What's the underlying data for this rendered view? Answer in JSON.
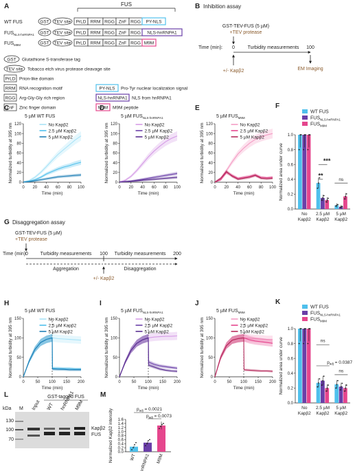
{
  "panel_letters": [
    "A",
    "B",
    "C",
    "D",
    "E",
    "F",
    "G",
    "H",
    "I",
    "J",
    "K",
    "L",
    "M"
  ],
  "A": {
    "fus_label": "FUS",
    "rows": [
      "WT FUS",
      "FUS",
      "FUS"
    ],
    "row_subs": [
      "",
      "NLS-hnRNPA1",
      "M9M"
    ],
    "blocks": [
      "GST",
      "TEV site",
      "PrLD",
      "RRM",
      "RGG",
      "ZnF",
      "RGG"
    ],
    "tails": [
      "PY-NLS",
      "NLS-hnRNPA1",
      "M9M"
    ],
    "legend": [
      {
        "k": "GST",
        "v": "Glutathione S-transferase tag"
      },
      {
        "k": "TEV site",
        "v": "Tobacco etch virus protease cleavage site"
      },
      {
        "k": "PrLD",
        "v": "Prion-like domain"
      },
      {
        "k": "RRM",
        "v": "RNA recognition motif"
      },
      {
        "k": "RGG",
        "v": "Arg-Gly-Gly rich region"
      },
      {
        "k": "ZnF",
        "v": "Zinc finger domain"
      },
      {
        "k": "PY-NLS",
        "v": "Pro-Tyr nuclear localization signal"
      },
      {
        "k": "NLS-hnRNPA1",
        "v": "NLS from hnRNPA1"
      },
      {
        "k": "M9M",
        "v": "M9M peptide"
      }
    ]
  },
  "B": {
    "title": "Inhibition assay",
    "line1": "GST-TEV-FUS (5 µM)",
    "line2": "+TEV protease",
    "time_label": "Time (min):",
    "t0": "0",
    "t_end": "100",
    "phase": "Turbidity measurements",
    "add": "+/- Kapβ2",
    "end": "EM Imaging"
  },
  "G": {
    "title": "Disaggregation assay",
    "line1": "GST-TEV-FUS (5 µM)",
    "line2": "+TEV protease",
    "time_label": "Time (min):",
    "t0": "0",
    "t_mid": "100",
    "t_end": "200",
    "phase1": "Turbidity measurements",
    "phase2": "Turbidity measurements",
    "lab1": "Aggregation",
    "lab2": "Disaggregation",
    "add": "+/- Kapβ2"
  },
  "turbidity": {
    "ylabel": "Normalized turbidity at 395 nm",
    "xlabel": "Time (min)",
    "legend": [
      "No Kapβ2",
      "2.5 µM Kapβ2",
      "5 µM Kapβ2"
    ],
    "panels": {
      "C": {
        "title": "5 µM WT FUS",
        "sub": ""
      },
      "D": {
        "title": "5 µM FUS",
        "sub": "NLS-hnRNPA1"
      },
      "E": {
        "title": "5 µM FUS",
        "sub": "M9M"
      },
      "H": {
        "title": "5 µM WT FUS",
        "sub": ""
      },
      "I": {
        "title": "5 µM FUS",
        "sub": "NLS-hnRNPA1"
      },
      "J": {
        "title": "5 µM FUS",
        "sub": "M9M"
      }
    }
  },
  "bars": {
    "ylabel": "Normalized area under curve",
    "legend": [
      "WT FUS",
      "FUS",
      "FUS"
    ],
    "legend_subs": [
      "",
      "NLS-hnRNPA1",
      "M9M"
    ],
    "groups": [
      [
        "No",
        "Kapβ2"
      ],
      [
        "2.5 µM",
        "Kapβ2"
      ],
      [
        "5 µM",
        "Kapβ2"
      ]
    ],
    "F_sig": [
      "***",
      "**",
      "ns"
    ],
    "K_sig": [
      "ns",
      "p",
      "ns"
    ],
    "K_p": "= 0.0387",
    "K_p_sub": "adj"
  },
  "L": {
    "kda": "kDa",
    "m": "M",
    "header": "GST-tagged FUS",
    "lanes": [
      "Input",
      "WT",
      "hnRNPA1",
      "M9M"
    ],
    "mw": [
      "130",
      "100",
      "70"
    ],
    "bands": [
      "Kapβ2",
      "FUS"
    ]
  },
  "M": {
    "ylabel": "Normalized Kapβ2 intensity",
    "categories": [
      "WT",
      "hnRNPA1",
      "M9M"
    ],
    "p1": "= 0.0021",
    "p2": "= 0.0073",
    "p_sub": "adj"
  },
  "colors": {
    "wt": "#4fc0ec",
    "nls": "#6a3fa8",
    "m9m": "#e5468d",
    "wt_light": "#a8e3f7",
    "wt_dark": "#1f7fb6",
    "nls_light": "#d59be6",
    "nls_dark": "#5a2f91",
    "m9m_light": "#f49cc4",
    "m9m_dark": "#b52a5c",
    "line_brown": "#8a5a2b"
  },
  "chart_data": [
    {
      "type": "line",
      "id": "C",
      "title": "5 µM WT FUS",
      "xlabel": "Time (min)",
      "ylabel": "Normalized turbidity at 395 nm",
      "xlim": [
        0,
        100
      ],
      "ylim": [
        0,
        120
      ],
      "series": [
        {
          "name": "No Kapβ2",
          "x": [
            0,
            10,
            20,
            30,
            40,
            50,
            60,
            70,
            80,
            90,
            100
          ],
          "y": [
            0,
            3,
            10,
            20,
            32,
            45,
            57,
            67,
            77,
            87,
            95
          ]
        },
        {
          "name": "2.5 µM Kapβ2",
          "x": [
            0,
            10,
            20,
            30,
            40,
            50,
            60,
            70,
            80,
            90,
            100
          ],
          "y": [
            0,
            2,
            5,
            10,
            17,
            22,
            27,
            31,
            34,
            38,
            41
          ]
        },
        {
          "name": "5 µM Kapβ2",
          "x": [
            0,
            10,
            20,
            30,
            40,
            50,
            60,
            70,
            80,
            90,
            100
          ],
          "y": [
            0,
            1,
            3,
            5,
            7,
            9,
            11,
            12,
            13,
            14,
            15
          ]
        }
      ]
    },
    {
      "type": "line",
      "id": "D",
      "title": "5 µM FUS NLS-hnRNPA1",
      "xlabel": "Time (min)",
      "ylabel": "Normalized turbidity at 395 nm",
      "xlim": [
        0,
        100
      ],
      "ylim": [
        0,
        120
      ],
      "series": [
        {
          "name": "No Kapβ2",
          "x": [
            0,
            10,
            20,
            30,
            40,
            50,
            60,
            70,
            80,
            90,
            100
          ],
          "y": [
            0,
            4,
            12,
            24,
            38,
            52,
            64,
            74,
            83,
            90,
            95
          ]
        },
        {
          "name": "2.5 µM Kapβ2",
          "x": [
            0,
            10,
            20,
            30,
            40,
            50,
            60,
            70,
            80,
            90,
            100
          ],
          "y": [
            0,
            1,
            2,
            4,
            6,
            8,
            10,
            12,
            14,
            16,
            18
          ]
        },
        {
          "name": "5 µM Kapβ2",
          "x": [
            0,
            10,
            20,
            30,
            40,
            50,
            60,
            70,
            80,
            90,
            100
          ],
          "y": [
            0,
            1,
            2,
            3,
            4,
            5,
            6,
            7,
            8,
            9,
            10
          ]
        }
      ]
    },
    {
      "type": "line",
      "id": "E",
      "title": "5 µM FUS M9M",
      "xlabel": "Time (min)",
      "ylabel": "Normalized turbidity at 395 nm",
      "xlim": [
        0,
        100
      ],
      "ylim": [
        0,
        120
      ],
      "series": [
        {
          "name": "No Kapβ2",
          "x": [
            0,
            10,
            20,
            30,
            40,
            50,
            60,
            70,
            80,
            90,
            100
          ],
          "y": [
            0,
            8,
            24,
            42,
            58,
            70,
            80,
            88,
            93,
            97,
            100
          ]
        },
        {
          "name": "2.5 µM Kapβ2",
          "x": [
            0,
            10,
            20,
            30,
            40,
            50,
            60,
            70,
            80,
            90,
            100
          ],
          "y": [
            0,
            5,
            20,
            14,
            8,
            10,
            12,
            15,
            10,
            9,
            10
          ]
        },
        {
          "name": "5 µM Kapβ2",
          "x": [
            0,
            10,
            20,
            30,
            40,
            50,
            60,
            70,
            80,
            90,
            100
          ],
          "y": [
            0,
            8,
            22,
            12,
            6,
            8,
            10,
            14,
            8,
            7,
            8
          ]
        }
      ]
    },
    {
      "type": "line",
      "id": "H",
      "title": "5 µM WT FUS",
      "xlabel": "Time (min)",
      "ylabel": "Normalized turbidity at 395 nm",
      "xlim": [
        0,
        200
      ],
      "ylim": [
        0,
        150
      ],
      "series": [
        {
          "name": "No Kapβ2",
          "x": [
            0,
            20,
            40,
            60,
            80,
            100,
            120,
            140,
            160,
            180,
            200
          ],
          "y": [
            0,
            40,
            70,
            88,
            96,
            100,
            98,
            97,
            96,
            95,
            94
          ]
        },
        {
          "name": "2.5 µM Kapβ2",
          "x": [
            0,
            20,
            40,
            60,
            80,
            100,
            101,
            120,
            140,
            160,
            180,
            200
          ],
          "y": [
            0,
            40,
            70,
            88,
            96,
            100,
            22,
            22,
            21,
            21,
            20,
            20
          ]
        },
        {
          "name": "5 µM Kapβ2",
          "x": [
            0,
            20,
            40,
            60,
            80,
            100,
            101,
            120,
            140,
            160,
            180,
            200
          ],
          "y": [
            0,
            40,
            70,
            88,
            96,
            100,
            20,
            19,
            19,
            18,
            18,
            18
          ]
        }
      ]
    },
    {
      "type": "line",
      "id": "I",
      "title": "5 µM FUS NLS-hnRNPA1",
      "xlabel": "Time (min)",
      "ylabel": "Normalized turbidity at 395 nm",
      "xlim": [
        0,
        200
      ],
      "ylim": [
        0,
        150
      ],
      "series": [
        {
          "name": "No Kapβ2",
          "x": [
            0,
            20,
            40,
            60,
            80,
            100,
            120,
            140,
            160,
            180,
            200
          ],
          "y": [
            0,
            38,
            68,
            86,
            95,
            100,
            102,
            103,
            104,
            104,
            105
          ]
        },
        {
          "name": "2.5 µM Kapβ2",
          "x": [
            0,
            20,
            40,
            60,
            80,
            100,
            101,
            120,
            140,
            160,
            180,
            200
          ],
          "y": [
            0,
            38,
            68,
            86,
            95,
            100,
            38,
            32,
            28,
            26,
            24,
            22
          ]
        },
        {
          "name": "5 µM Kapβ2",
          "x": [
            0,
            20,
            40,
            60,
            80,
            100,
            101,
            120,
            140,
            160,
            180,
            200
          ],
          "y": [
            0,
            38,
            68,
            86,
            95,
            100,
            30,
            25,
            20,
            17,
            15,
            14
          ]
        }
      ]
    },
    {
      "type": "line",
      "id": "J",
      "title": "5 µM FUS M9M",
      "xlabel": "Time (min)",
      "ylabel": "Normalized turbidity at 395 nm",
      "xlim": [
        0,
        200
      ],
      "ylim": [
        0,
        150
      ],
      "series": [
        {
          "name": "No Kapβ2",
          "x": [
            0,
            20,
            40,
            60,
            80,
            100,
            120,
            140,
            160,
            180,
            200
          ],
          "y": [
            0,
            50,
            80,
            94,
            98,
            100,
            99,
            98,
            97,
            96,
            96
          ]
        },
        {
          "name": "2.5 µM Kapβ2",
          "x": [
            0,
            20,
            40,
            60,
            80,
            100,
            120,
            140,
            160,
            180,
            200
          ],
          "y": [
            0,
            50,
            80,
            94,
            98,
            100,
            95,
            92,
            90,
            88,
            86
          ]
        },
        {
          "name": "5 µM Kapβ2",
          "x": [
            0,
            20,
            40,
            60,
            80,
            100,
            101,
            120,
            140,
            160,
            180,
            200
          ],
          "y": [
            0,
            50,
            80,
            94,
            98,
            100,
            18,
            17,
            16,
            15,
            15,
            14
          ]
        }
      ]
    },
    {
      "type": "bar",
      "id": "F",
      "ylabel": "Normalized area under curve",
      "ylim": [
        0,
        1.0
      ],
      "categories": [
        "No Kapβ2",
        "2.5 µM Kapβ2",
        "5 µM Kapβ2"
      ],
      "series": [
        {
          "name": "WT FUS",
          "values": [
            1.0,
            0.35,
            0.05
          ]
        },
        {
          "name": "FUS NLS-hnRNPA1",
          "values": [
            1.0,
            0.15,
            0.03
          ]
        },
        {
          "name": "FUS M9M",
          "values": [
            1.0,
            0.12,
            0.17
          ]
        }
      ]
    },
    {
      "type": "bar",
      "id": "K",
      "ylabel": "Normalized area under curve",
      "ylim": [
        0,
        1.0
      ],
      "categories": [
        "No Kapβ2",
        "2.5 µM Kapβ2",
        "5 µM Kapβ2"
      ],
      "series": [
        {
          "name": "WT FUS",
          "values": [
            1.0,
            0.27,
            0.25
          ]
        },
        {
          "name": "FUS NLS-hnRNPA1",
          "values": [
            1.0,
            0.3,
            0.22
          ]
        },
        {
          "name": "FUS M9M",
          "values": [
            1.0,
            0.2,
            0.2
          ]
        }
      ]
    },
    {
      "type": "bar",
      "id": "M",
      "ylabel": "Normalized Kapβ2 intensity",
      "ylim": [
        0,
        1.6
      ],
      "categories": [
        "WT",
        "hnRNPA1",
        "M9M"
      ],
      "values": [
        0.25,
        0.45,
        1.3
      ],
      "points": [
        [
          0.1,
          0.2,
          0.35,
          0.45
        ],
        [
          0.3,
          0.4,
          0.55,
          0.6
        ],
        [
          1.15,
          1.25,
          1.35,
          1.4
        ]
      ]
    }
  ]
}
